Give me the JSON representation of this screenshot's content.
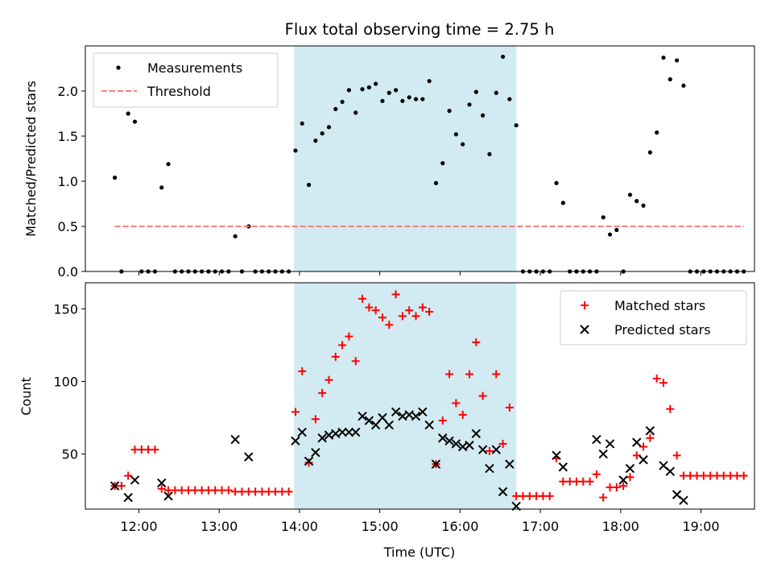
{
  "chart_data": [
    {
      "type": "scatter",
      "title": "Flux total observing time = 2.75 h",
      "xlabel": "",
      "ylabel": "Matched/Predicted stars",
      "xlim": [
        "11:20",
        "19:40"
      ],
      "ylim": [
        0,
        2.5
      ],
      "yticks": [
        0.0,
        0.5,
        1.0,
        1.5,
        2.0
      ],
      "ytick_labels": [
        "0.0",
        "0.5",
        "1.0",
        "1.5",
        "2.0"
      ],
      "shaded_span": [
        "13:56",
        "16:42"
      ],
      "shaded_color": "#add8e6",
      "legend_position": "upper-left",
      "series": [
        {
          "name": "Measurements",
          "marker": "dot",
          "color": "#000000",
          "points": [
            [
              "11:42",
              1.04
            ],
            [
              "11:47",
              0.0
            ],
            [
              "11:52",
              1.75
            ],
            [
              "11:57",
              1.66
            ],
            [
              "12:02",
              0.0
            ],
            [
              "12:07",
              0.0
            ],
            [
              "12:12",
              0.0
            ],
            [
              "12:17",
              0.93
            ],
            [
              "12:22",
              1.19
            ],
            [
              "12:27",
              0.0
            ],
            [
              "12:32",
              0.0
            ],
            [
              "12:37",
              0.0
            ],
            [
              "12:42",
              0.0
            ],
            [
              "12:47",
              0.0
            ],
            [
              "12:52",
              0.0
            ],
            [
              "12:57",
              0.0
            ],
            [
              "13:02",
              0.0
            ],
            [
              "13:07",
              0.0
            ],
            [
              "13:12",
              0.39
            ],
            [
              "13:17",
              0.0
            ],
            [
              "13:22",
              0.5
            ],
            [
              "13:27",
              0.0
            ],
            [
              "13:32",
              0.0
            ],
            [
              "13:37",
              0.0
            ],
            [
              "13:42",
              0.0
            ],
            [
              "13:47",
              0.0
            ],
            [
              "13:52",
              0.0
            ],
            [
              "13:57",
              1.34
            ],
            [
              "14:02",
              1.64
            ],
            [
              "14:07",
              0.96
            ],
            [
              "14:12",
              1.45
            ],
            [
              "14:17",
              1.53
            ],
            [
              "14:22",
              1.6
            ],
            [
              "14:27",
              1.8
            ],
            [
              "14:32",
              1.88
            ],
            [
              "14:37",
              2.01
            ],
            [
              "14:42",
              1.76
            ],
            [
              "14:47",
              2.02
            ],
            [
              "14:52",
              2.04
            ],
            [
              "14:57",
              2.08
            ],
            [
              "15:02",
              1.89
            ],
            [
              "15:07",
              1.98
            ],
            [
              "15:12",
              2.01
            ],
            [
              "15:17",
              1.89
            ],
            [
              "15:22",
              1.93
            ],
            [
              "15:27",
              1.91
            ],
            [
              "15:32",
              1.91
            ],
            [
              "15:37",
              2.11
            ],
            [
              "15:42",
              0.98
            ],
            [
              "15:47",
              1.2
            ],
            [
              "15:52",
              1.78
            ],
            [
              "15:57",
              1.52
            ],
            [
              "16:02",
              1.41
            ],
            [
              "16:07",
              1.85
            ],
            [
              "16:12",
              1.99
            ],
            [
              "16:17",
              1.73
            ],
            [
              "16:22",
              1.3
            ],
            [
              "16:27",
              1.98
            ],
            [
              "16:32",
              2.38
            ],
            [
              "16:37",
              1.91
            ],
            [
              "16:42",
              1.62
            ],
            [
              "16:47",
              0.0
            ],
            [
              "16:52",
              0.0
            ],
            [
              "16:57",
              0.0
            ],
            [
              "17:02",
              0.0
            ],
            [
              "17:07",
              0.0
            ],
            [
              "17:12",
              0.98
            ],
            [
              "17:17",
              0.76
            ],
            [
              "17:22",
              0.0
            ],
            [
              "17:27",
              0.0
            ],
            [
              "17:32",
              0.0
            ],
            [
              "17:37",
              0.0
            ],
            [
              "17:42",
              0.0
            ],
            [
              "17:47",
              0.6
            ],
            [
              "17:52",
              0.41
            ],
            [
              "17:57",
              0.46
            ],
            [
              "18:02",
              0.0
            ],
            [
              "18:07",
              0.85
            ],
            [
              "18:12",
              0.78
            ],
            [
              "18:17",
              0.73
            ],
            [
              "18:22",
              1.32
            ],
            [
              "18:27",
              1.54
            ],
            [
              "18:32",
              2.37
            ],
            [
              "18:37",
              2.13
            ],
            [
              "18:42",
              2.34
            ],
            [
              "18:47",
              2.06
            ],
            [
              "18:52",
              0.0
            ],
            [
              "18:57",
              0.0
            ],
            [
              "19:02",
              0.0
            ],
            [
              "19:07",
              0.0
            ],
            [
              "19:12",
              0.0
            ],
            [
              "19:17",
              0.0
            ],
            [
              "19:22",
              0.0
            ],
            [
              "19:27",
              0.0
            ],
            [
              "19:32",
              0.0
            ]
          ]
        },
        {
          "name": "Threshold",
          "marker": "dashed-line",
          "color": "#ff7f7f",
          "points": [
            [
              "11:42",
              0.5
            ],
            [
              "19:32",
              0.5
            ]
          ]
        }
      ]
    },
    {
      "type": "scatter",
      "title": "",
      "xlabel": "Time (UTC)",
      "ylabel": "Count",
      "xlim": [
        "11:20",
        "19:40"
      ],
      "ylim": [
        12,
        168
      ],
      "xticks": [
        "12:00",
        "13:00",
        "14:00",
        "15:00",
        "16:00",
        "17:00",
        "18:00",
        "19:00"
      ],
      "yticks": [
        50,
        100,
        150
      ],
      "ytick_labels": [
        "50",
        "100",
        "150"
      ],
      "shaded_span": [
        "13:56",
        "16:42"
      ],
      "shaded_color": "#add8e6",
      "legend_position": "upper-right",
      "series": [
        {
          "name": "Matched stars",
          "marker": "plus",
          "color": "#ff0000",
          "points": [
            [
              "11:42",
              28
            ],
            [
              "11:47",
              28
            ],
            [
              "11:52",
              35
            ],
            [
              "11:57",
              53
            ],
            [
              "12:02",
              53
            ],
            [
              "12:07",
              53
            ],
            [
              "12:12",
              53
            ],
            [
              "12:17",
              26
            ],
            [
              "12:22",
              25
            ],
            [
              "12:27",
              25
            ],
            [
              "12:32",
              25
            ],
            [
              "12:37",
              25
            ],
            [
              "12:42",
              25
            ],
            [
              "12:47",
              25
            ],
            [
              "12:52",
              25
            ],
            [
              "12:57",
              25
            ],
            [
              "13:02",
              25
            ],
            [
              "13:07",
              25
            ],
            [
              "13:12",
              24
            ],
            [
              "13:17",
              24
            ],
            [
              "13:22",
              24
            ],
            [
              "13:27",
              24
            ],
            [
              "13:32",
              24
            ],
            [
              "13:37",
              24
            ],
            [
              "13:42",
              24
            ],
            [
              "13:47",
              24
            ],
            [
              "13:52",
              24
            ],
            [
              "13:57",
              79
            ],
            [
              "14:02",
              107
            ],
            [
              "14:07",
              44
            ],
            [
              "14:12",
              74
            ],
            [
              "14:17",
              92
            ],
            [
              "14:22",
              101
            ],
            [
              "14:27",
              117
            ],
            [
              "14:32",
              125
            ],
            [
              "14:37",
              131
            ],
            [
              "14:42",
              114
            ],
            [
              "14:47",
              157
            ],
            [
              "14:52",
              151
            ],
            [
              "14:57",
              149
            ],
            [
              "15:02",
              144
            ],
            [
              "15:07",
              139
            ],
            [
              "15:12",
              160
            ],
            [
              "15:17",
              145
            ],
            [
              "15:22",
              149
            ],
            [
              "15:27",
              145
            ],
            [
              "15:32",
              151
            ],
            [
              "15:37",
              148
            ],
            [
              "15:42",
              43
            ],
            [
              "15:47",
              73
            ],
            [
              "15:52",
              105
            ],
            [
              "15:57",
              85
            ],
            [
              "16:02",
              77
            ],
            [
              "16:07",
              105
            ],
            [
              "16:12",
              127
            ],
            [
              "16:17",
              90
            ],
            [
              "16:22",
              52
            ],
            [
              "16:27",
              105
            ],
            [
              "16:32",
              57
            ],
            [
              "16:37",
              82
            ],
            [
              "16:42",
              21
            ],
            [
              "16:47",
              21
            ],
            [
              "16:52",
              21
            ],
            [
              "16:57",
              21
            ],
            [
              "17:02",
              21
            ],
            [
              "17:07",
              21
            ],
            [
              "17:12",
              47
            ],
            [
              "17:17",
              31
            ],
            [
              "17:22",
              31
            ],
            [
              "17:27",
              31
            ],
            [
              "17:32",
              31
            ],
            [
              "17:37",
              31
            ],
            [
              "17:42",
              36
            ],
            [
              "17:47",
              20
            ],
            [
              "17:52",
              27
            ],
            [
              "17:57",
              27
            ],
            [
              "18:02",
              28
            ],
            [
              "18:07",
              34
            ],
            [
              "18:12",
              49
            ],
            [
              "18:17",
              55
            ],
            [
              "18:22",
              61
            ],
            [
              "18:27",
              102
            ],
            [
              "18:32",
              99
            ],
            [
              "18:37",
              81
            ],
            [
              "18:42",
              49
            ],
            [
              "18:47",
              35
            ],
            [
              "18:52",
              35
            ],
            [
              "18:57",
              35
            ],
            [
              "19:02",
              35
            ],
            [
              "19:07",
              35
            ],
            [
              "19:12",
              35
            ],
            [
              "19:17",
              35
            ],
            [
              "19:22",
              35
            ],
            [
              "19:27",
              35
            ],
            [
              "19:32",
              35
            ]
          ]
        },
        {
          "name": "Predicted stars",
          "marker": "x",
          "color": "#000000",
          "points": [
            [
              "11:42",
              28
            ],
            [
              "11:52",
              20
            ],
            [
              "11:57",
              32
            ],
            [
              "12:17",
              30
            ],
            [
              "12:22",
              21
            ],
            [
              "13:12",
              60
            ],
            [
              "13:22",
              48
            ],
            [
              "13:57",
              59
            ],
            [
              "14:02",
              65
            ],
            [
              "14:07",
              45
            ],
            [
              "14:12",
              51
            ],
            [
              "14:17",
              61
            ],
            [
              "14:22",
              63
            ],
            [
              "14:27",
              64
            ],
            [
              "14:32",
              65
            ],
            [
              "14:37",
              65
            ],
            [
              "14:42",
              65
            ],
            [
              "14:47",
              76
            ],
            [
              "14:52",
              73
            ],
            [
              "14:57",
              70
            ],
            [
              "15:02",
              75
            ],
            [
              "15:07",
              70
            ],
            [
              "15:12",
              79
            ],
            [
              "15:17",
              76
            ],
            [
              "15:22",
              77
            ],
            [
              "15:27",
              76
            ],
            [
              "15:32",
              79
            ],
            [
              "15:37",
              70
            ],
            [
              "15:42",
              43
            ],
            [
              "15:47",
              61
            ],
            [
              "15:52",
              59
            ],
            [
              "15:57",
              57
            ],
            [
              "16:02",
              55
            ],
            [
              "16:07",
              56
            ],
            [
              "16:12",
              64
            ],
            [
              "16:17",
              53
            ],
            [
              "16:22",
              40
            ],
            [
              "16:27",
              53
            ],
            [
              "16:32",
              24
            ],
            [
              "16:37",
              43
            ],
            [
              "16:42",
              14
            ],
            [
              "17:12",
              49
            ],
            [
              "17:17",
              41
            ],
            [
              "17:42",
              60
            ],
            [
              "17:47",
              50
            ],
            [
              "17:52",
              57
            ],
            [
              "18:02",
              32
            ],
            [
              "18:07",
              40
            ],
            [
              "18:12",
              58
            ],
            [
              "18:17",
              46
            ],
            [
              "18:22",
              66
            ],
            [
              "18:32",
              42
            ],
            [
              "18:37",
              38
            ],
            [
              "18:42",
              22
            ],
            [
              "18:47",
              18
            ]
          ]
        }
      ]
    }
  ]
}
